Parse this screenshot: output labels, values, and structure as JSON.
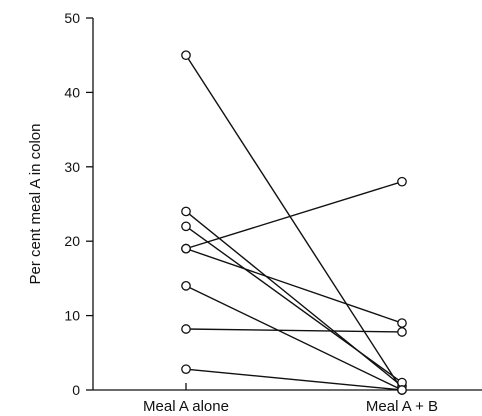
{
  "chart_data": {
    "type": "line",
    "title": "",
    "xlabel": "",
    "ylabel": "Per cent meal A in colon",
    "categories": [
      "Meal A alone",
      "Meal A + B"
    ],
    "ylim": [
      0,
      50
    ],
    "yticks": [
      0,
      10,
      20,
      30,
      40,
      50
    ],
    "grid": false,
    "legend": "none",
    "series": [
      {
        "values": [
          45,
          0
        ]
      },
      {
        "values": [
          24,
          0.5
        ]
      },
      {
        "values": [
          22,
          1
        ]
      },
      {
        "values": [
          19,
          28
        ]
      },
      {
        "values": [
          19,
          9
        ]
      },
      {
        "values": [
          14,
          0
        ]
      },
      {
        "values": [
          8.2,
          7.8
        ]
      },
      {
        "values": [
          2.8,
          0
        ]
      }
    ]
  },
  "colors": {
    "line": "#111111",
    "marker_fill": "#ffffff",
    "axis": "#111111"
  }
}
